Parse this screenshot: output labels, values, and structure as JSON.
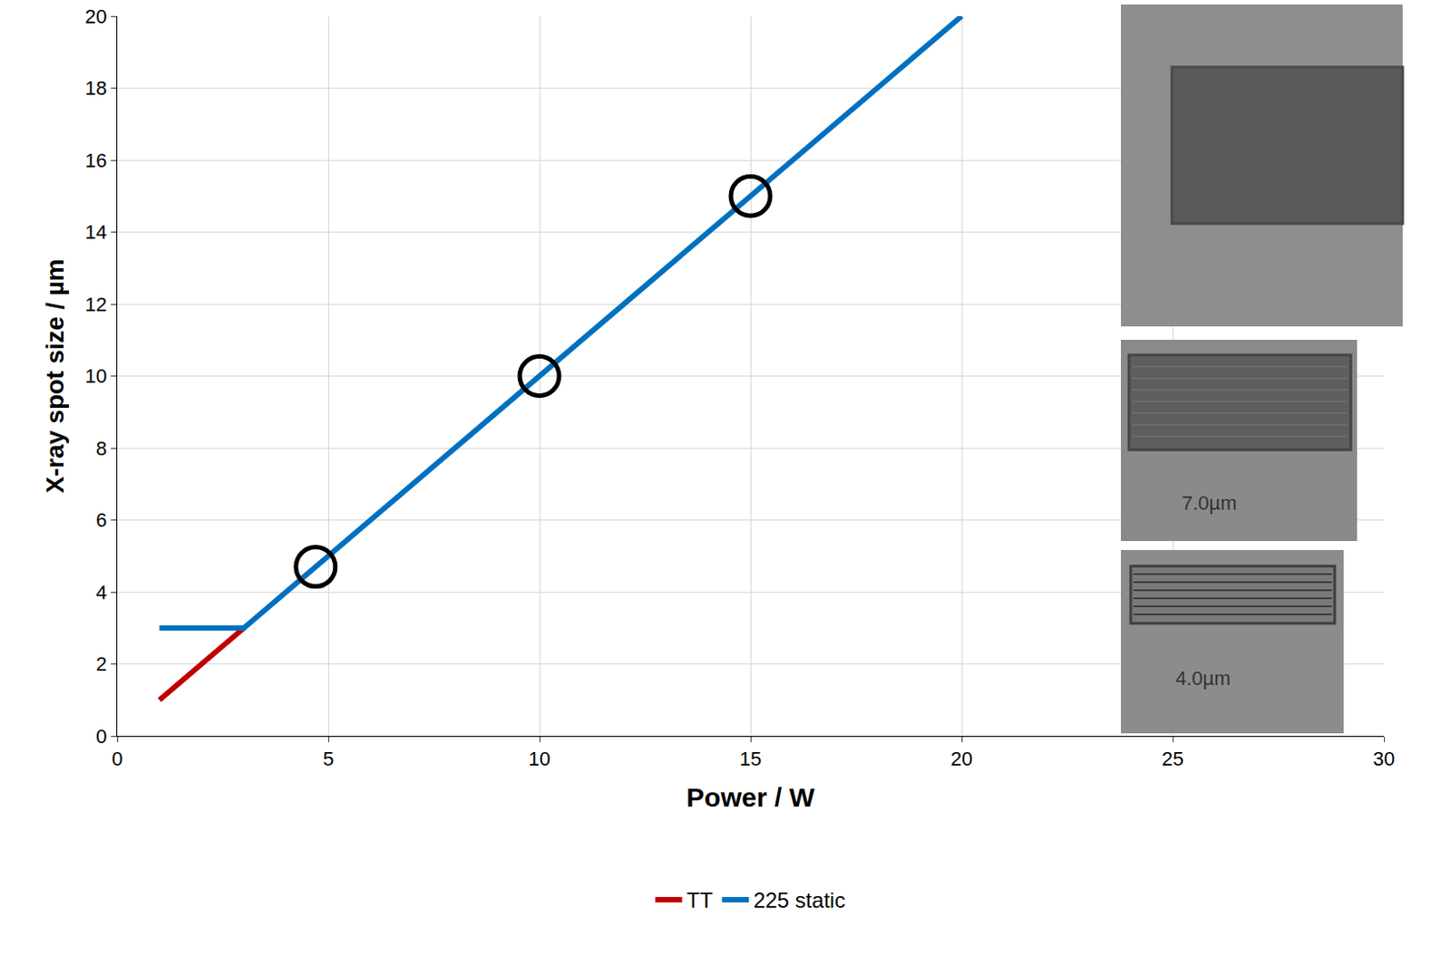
{
  "chart_data": {
    "type": "line",
    "xlabel": "Power / W",
    "ylabel": "X-ray spot size / µm",
    "xlim": [
      0,
      30
    ],
    "xticks": [
      0,
      5,
      10,
      15,
      20,
      25,
      30
    ],
    "ylim": [
      0,
      20
    ],
    "yticks": [
      0,
      2,
      4,
      6,
      8,
      10,
      12,
      14,
      16,
      18,
      20
    ],
    "grid": true,
    "legend": "bottom",
    "series": [
      {
        "name": "TT",
        "color": "#c00000",
        "x": [
          1,
          3
        ],
        "values": [
          1,
          3
        ]
      },
      {
        "name": "225 static",
        "color": "#0070c0",
        "x": [
          1,
          3,
          20
        ],
        "values": [
          3,
          3,
          20
        ]
      }
    ],
    "highlighted_points": {
      "x": [
        4.7,
        10,
        15
      ],
      "values": [
        4.7,
        10,
        15
      ],
      "color": "#000000",
      "marker": "open circle"
    },
    "annotations": [
      "7.0µm",
      "4.0µm"
    ]
  }
}
